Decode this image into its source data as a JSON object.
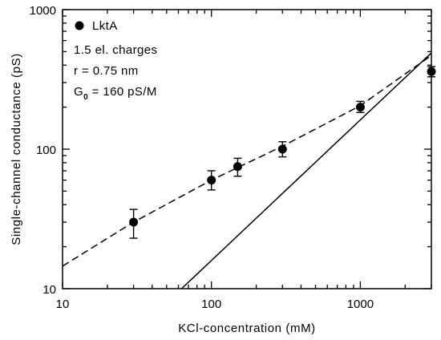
{
  "chart_data": {
    "type": "scatter",
    "xlabel": "KCl-concentration (mM)",
    "ylabel": "Single-channel conductance (pS)",
    "xscale": "log",
    "yscale": "log",
    "xlim": [
      10,
      3000
    ],
    "ylim": [
      10,
      1000
    ],
    "x_ticks": [
      {
        "value": 10,
        "label": "10"
      },
      {
        "value": 100,
        "label": "100"
      },
      {
        "value": 1000,
        "label": "1000"
      }
    ],
    "y_ticks": [
      {
        "value": 10,
        "label": "10"
      },
      {
        "value": 100,
        "label": "100"
      },
      {
        "value": 1000,
        "label": "1000"
      }
    ],
    "grid": false,
    "legend_position": "top-left",
    "legend": {
      "marker_label": "LktA",
      "line1": "1.5 el. charges",
      "line2": "r = 0.75 nm",
      "g0_prefix": "G",
      "g0_sub": "0",
      "g0_rest": " = 160 pS/M"
    },
    "series": [
      {
        "name": "LktA",
        "style": "filled-circle-with-errorbars",
        "points": [
          {
            "x": 30,
            "y": 30,
            "y_low": 23,
            "y_high": 37
          },
          {
            "x": 100,
            "y": 60,
            "y_low": 51,
            "y_high": 70
          },
          {
            "x": 150,
            "y": 75,
            "y_low": 64,
            "y_high": 86
          },
          {
            "x": 300,
            "y": 100,
            "y_low": 88,
            "y_high": 113
          },
          {
            "x": 1000,
            "y": 200,
            "y_low": 183,
            "y_high": 220
          },
          {
            "x": 3000,
            "y": 360,
            "y_low": 330,
            "y_high": 390
          }
        ]
      },
      {
        "style": "dashed-line",
        "points": [
          {
            "x": 10,
            "y": 14.5
          },
          {
            "x": 30,
            "y": 30
          },
          {
            "x": 100,
            "y": 60
          },
          {
            "x": 300,
            "y": 105
          },
          {
            "x": 1000,
            "y": 205
          },
          {
            "x": 3000,
            "y": 470
          }
        ]
      },
      {
        "style": "solid-line",
        "points": [
          {
            "x": 63,
            "y": 10
          },
          {
            "x": 3000,
            "y": 490
          }
        ]
      }
    ]
  }
}
